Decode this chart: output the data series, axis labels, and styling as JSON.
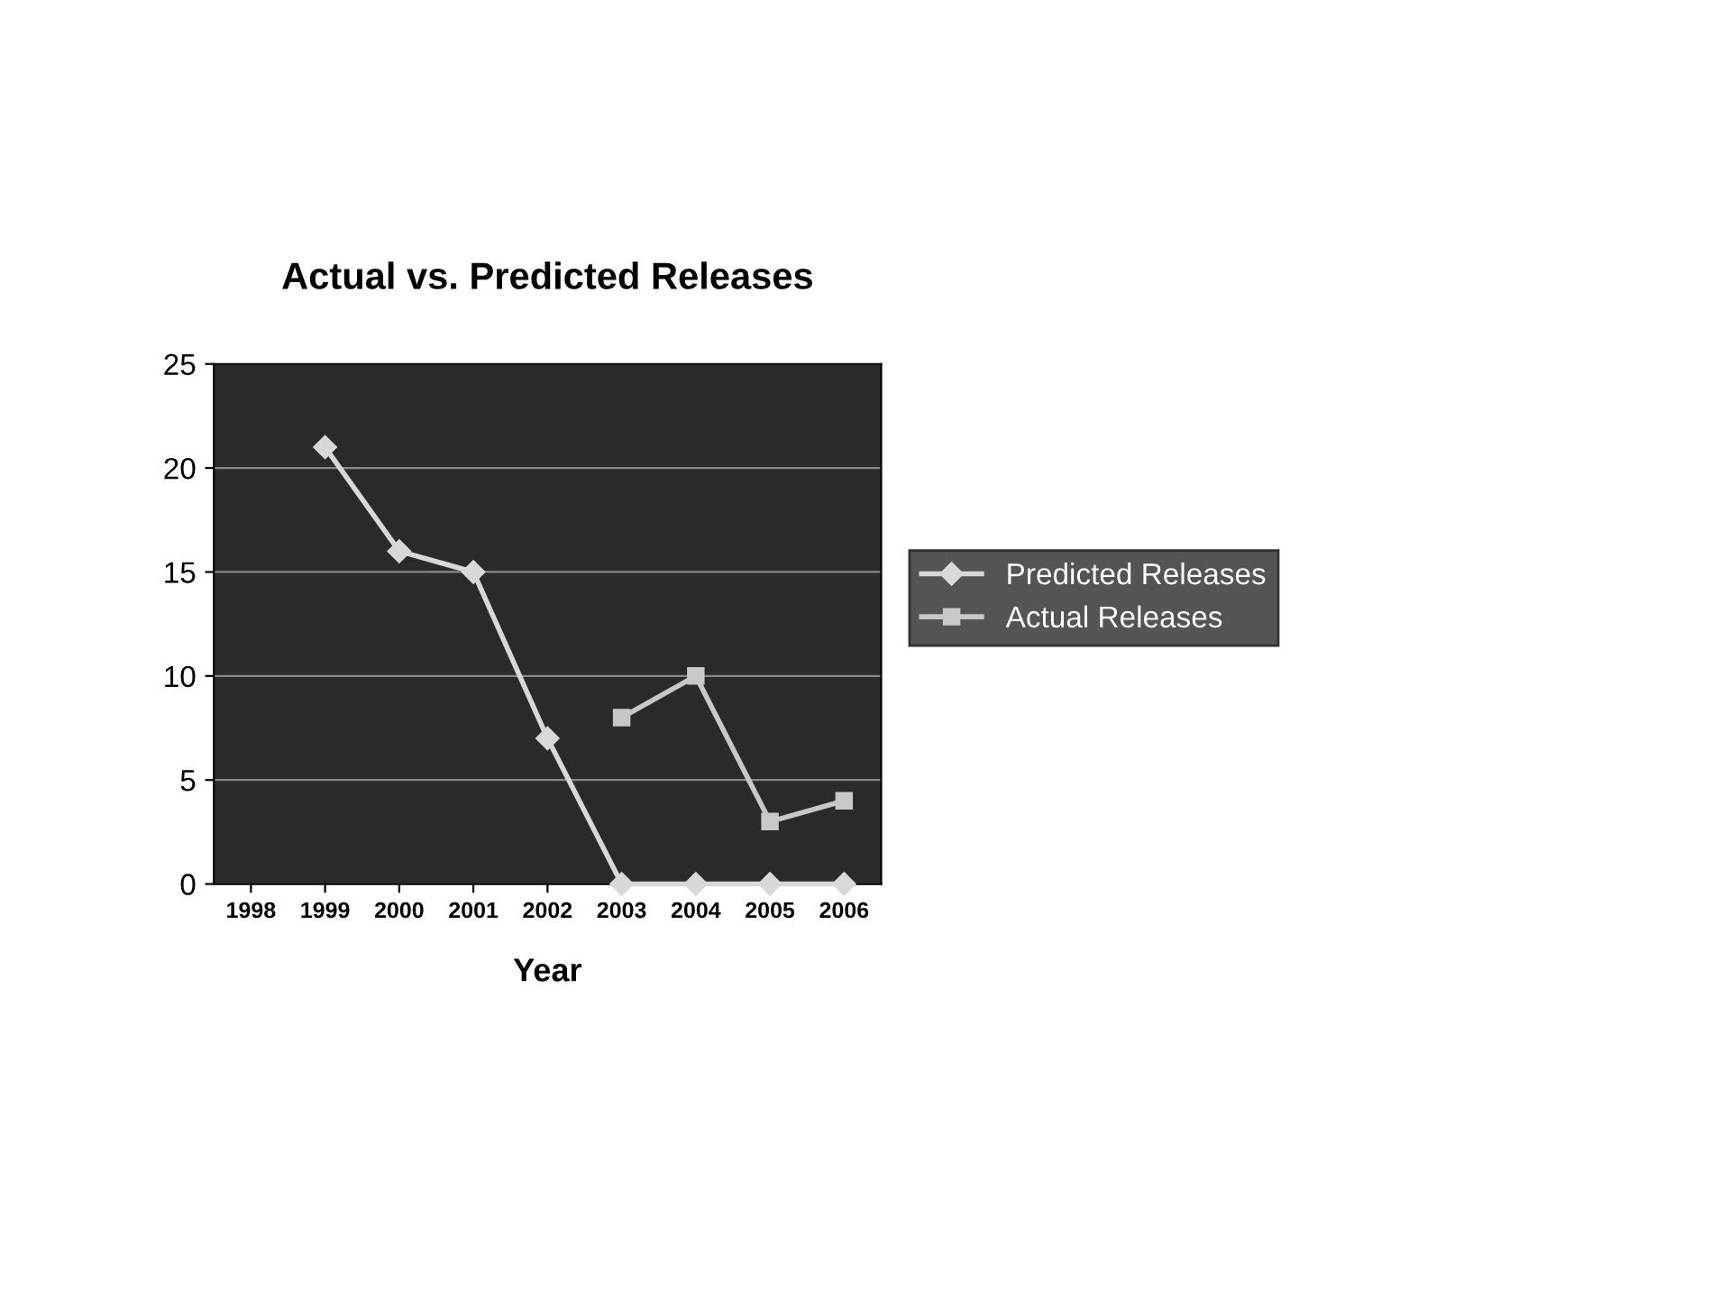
{
  "chart_data": {
    "type": "line",
    "title": "Actual vs. Predicted Releases",
    "xlabel": "Year",
    "categories": [
      "1998",
      "1999",
      "2000",
      "2001",
      "2002",
      "2003",
      "2004",
      "2005",
      "2006"
    ],
    "series": [
      {
        "name": "Predicted Releases",
        "color": "#d8d8d8",
        "marker": "diamond",
        "values": [
          null,
          21,
          16,
          15,
          7,
          0,
          0,
          0,
          0
        ]
      },
      {
        "name": "Actual Releases",
        "color": "#c8c8c8",
        "marker": "square",
        "values": [
          null,
          null,
          null,
          null,
          null,
          8,
          10,
          3,
          4
        ]
      }
    ],
    "ylim": [
      0,
      25
    ],
    "yticks": [
      0,
      5,
      10,
      15,
      20,
      25
    ],
    "grid": "y",
    "legend": "right"
  }
}
